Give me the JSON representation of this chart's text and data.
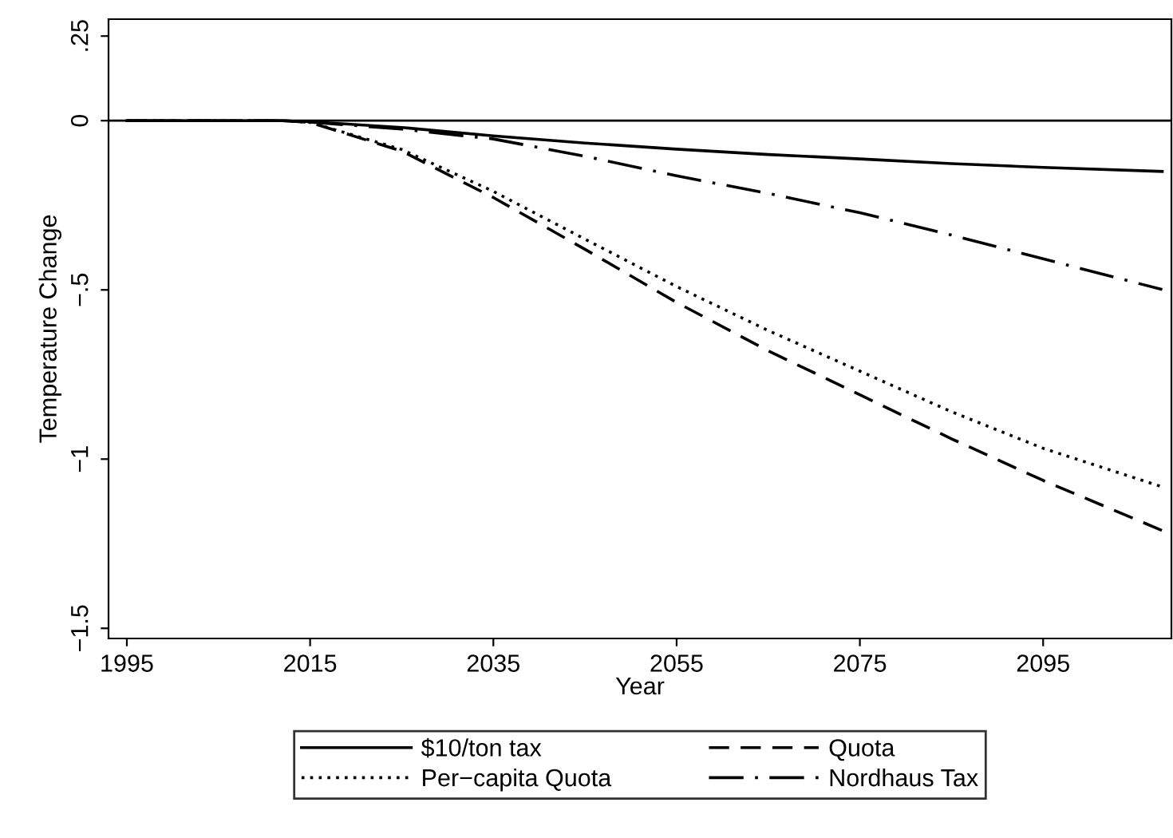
{
  "chart_data": {
    "type": "line",
    "xlabel": "Year",
    "ylabel": "Temperature Change",
    "x": [
      1995,
      2005,
      2012,
      2015,
      2025,
      2035,
      2045,
      2055,
      2065,
      2075,
      2085,
      2095,
      2108
    ],
    "series": [
      {
        "name": "$10/ton tax",
        "color": "#000000",
        "line_style": "solid",
        "values": [
          0,
          0,
          0,
          -0.003,
          -0.02,
          -0.045,
          -0.066,
          -0.084,
          -0.1,
          -0.113,
          -0.127,
          -0.138,
          -0.15
        ]
      },
      {
        "name": "Quota",
        "color": "#000000",
        "line_style": "dashed",
        "values": [
          0,
          0,
          0,
          -0.005,
          -0.09,
          -0.227,
          -0.38,
          -0.537,
          -0.68,
          -0.81,
          -0.94,
          -1.063,
          -1.211
        ]
      },
      {
        "name": "Per−capita Quota",
        "color": "#000000",
        "line_style": "dotted",
        "values": [
          0,
          0,
          0,
          -0.005,
          -0.085,
          -0.209,
          -0.35,
          -0.49,
          -0.62,
          -0.74,
          -0.86,
          -0.968,
          -1.082
        ]
      },
      {
        "name": "Nordhaus Tax",
        "color": "#000000",
        "line_style": "dashdot",
        "values": [
          0,
          0,
          0,
          -0.004,
          -0.025,
          -0.054,
          -0.105,
          -0.163,
          -0.215,
          -0.272,
          -0.338,
          -0.408,
          -0.499
        ]
      }
    ],
    "xlim": [
      1993,
      2109
    ],
    "xticks": [
      1995,
      2015,
      2035,
      2055,
      2075,
      2095
    ],
    "ylim": [
      -1.53,
      0.3
    ],
    "yticks": [
      {
        "value": -1.5,
        "label": "−1.5"
      },
      {
        "value": -1,
        "label": "−1"
      },
      {
        "value": -0.5,
        "label": "−.5"
      },
      {
        "value": 0,
        "label": "0"
      },
      {
        "value": 0.25,
        "label": ".25"
      }
    ],
    "ref_lines": [
      {
        "axis": "y",
        "value": 0,
        "color": "#000000",
        "line_style": "solid"
      }
    ],
    "grid": false,
    "legend": "bottom"
  }
}
